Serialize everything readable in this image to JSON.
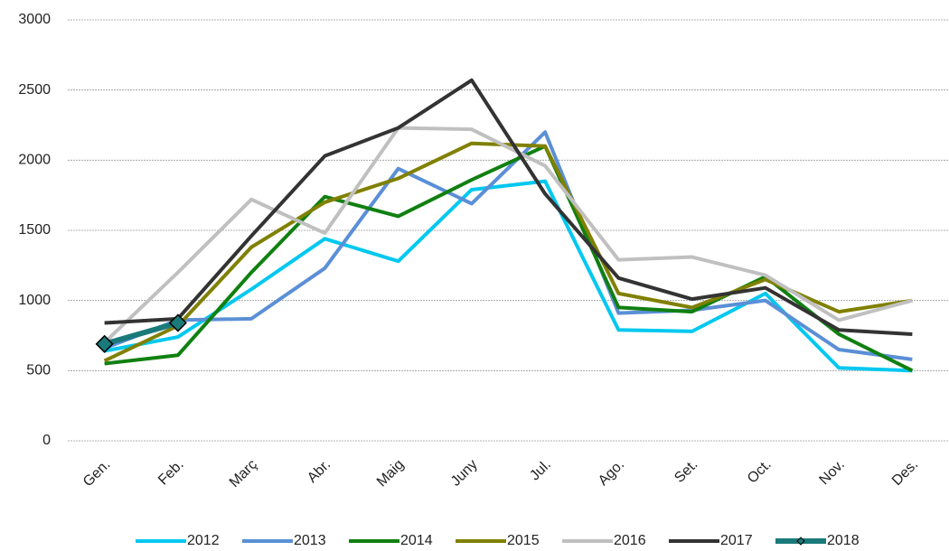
{
  "chart_data": {
    "type": "line",
    "categories": [
      "Gen.",
      "Feb.",
      "Març",
      "Abr.",
      "Maig",
      "Juny",
      "Jul.",
      "Ago.",
      "Set.",
      "Oct.",
      "Nov.",
      "Des."
    ],
    "series": [
      {
        "name": "2012",
        "color": "#00c8f0",
        "values": [
          640,
          740,
          1080,
          1440,
          1280,
          1790,
          1850,
          790,
          780,
          1050,
          520,
          500
        ]
      },
      {
        "name": "2013",
        "color": "#5b8fd6",
        "values": [
          660,
          860,
          870,
          1230,
          1940,
          1690,
          2200,
          910,
          930,
          1000,
          650,
          580
        ]
      },
      {
        "name": "2014",
        "color": "#108010",
        "values": [
          550,
          610,
          1200,
          1740,
          1600,
          1860,
          2100,
          950,
          920,
          1170,
          760,
          500
        ]
      },
      {
        "name": "2015",
        "color": "#808000",
        "values": [
          570,
          820,
          1380,
          1700,
          1870,
          2120,
          2100,
          1050,
          950,
          1150,
          920,
          1000
        ]
      },
      {
        "name": "2016",
        "color": "#c0c0c0",
        "values": [
          700,
          1200,
          1720,
          1480,
          2230,
          2220,
          1960,
          1290,
          1310,
          1180,
          860,
          1000
        ]
      },
      {
        "name": "2017",
        "color": "#333333",
        "values": [
          840,
          870,
          1460,
          2030,
          2230,
          2570,
          1760,
          1160,
          1010,
          1090,
          790,
          760
        ]
      },
      {
        "name": "2018",
        "color": "#1a7a7a",
        "marker": "diamond",
        "values": [
          690,
          840,
          null,
          null,
          null,
          null,
          null,
          null,
          null,
          null,
          null,
          null
        ]
      }
    ],
    "ylim": [
      0,
      3000
    ],
    "yticks": [
      0,
      500,
      1000,
      1500,
      2000,
      2500,
      3000
    ],
    "grid": true,
    "legend": "bottom"
  }
}
